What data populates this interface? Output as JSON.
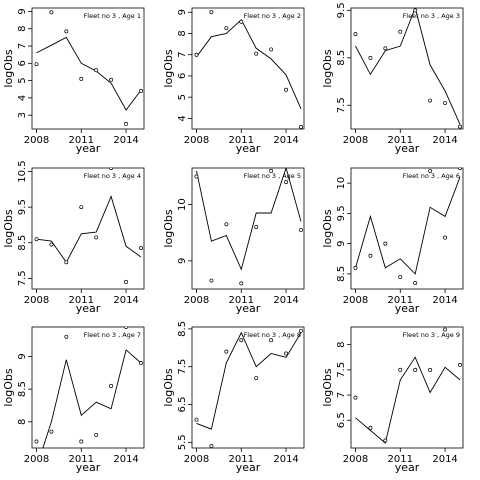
{
  "chart_data": [
    {
      "type": "line",
      "title": "Fleet no 3 , Age 1",
      "xlabel": "year",
      "ylabel": "logObs",
      "xlim": [
        2007.7,
        2015.2
      ],
      "ylim": [
        2.2,
        9.2
      ],
      "xticks": [
        2008,
        2011,
        2014
      ],
      "yticks": [
        3,
        4,
        5,
        6,
        7,
        8,
        9
      ],
      "x": [
        2008,
        2009,
        2010,
        2011,
        2012,
        2013,
        2014,
        2015
      ],
      "fitted": [
        6.6,
        7.05,
        7.5,
        6.0,
        5.55,
        4.85,
        3.3,
        4.45
      ],
      "observed": [
        5.95,
        8.95,
        7.85,
        5.1,
        5.6,
        5.05,
        2.5,
        4.4
      ]
    },
    {
      "type": "line",
      "title": "Fleet no 3 , Age 2",
      "xlabel": "year",
      "ylabel": "logObs",
      "xlim": [
        2007.7,
        2015.2
      ],
      "ylim": [
        3.5,
        9.2
      ],
      "xticks": [
        2008,
        2011,
        2014
      ],
      "yticks": [
        4,
        5,
        6,
        7,
        8,
        9
      ],
      "x": [
        2008,
        2009,
        2010,
        2011,
        2012,
        2013,
        2014,
        2015
      ],
      "fitted": [
        6.9,
        7.85,
        8.0,
        8.65,
        7.3,
        6.8,
        6.05,
        4.45
      ],
      "observed": [
        7.0,
        9.0,
        8.25,
        8.55,
        7.05,
        7.25,
        5.35,
        3.6
      ]
    },
    {
      "type": "line",
      "title": "Fleet no 3 , Age 3",
      "xlabel": "year",
      "ylabel": "logObs",
      "xlim": [
        2007.7,
        2015.2
      ],
      "ylim": [
        7.0,
        9.55
      ],
      "xticks": [
        2008,
        2011,
        2014
      ],
      "yticks": [
        7.5,
        8.5,
        9.5
      ],
      "x": [
        2008,
        2009,
        2010,
        2011,
        2012,
        2013,
        2014,
        2015
      ],
      "fitted": [
        8.75,
        8.15,
        8.65,
        8.75,
        9.55,
        8.35,
        7.8,
        7.1
      ],
      "observed": [
        9.0,
        8.5,
        8.7,
        9.05,
        9.5,
        7.6,
        7.55,
        7.05
      ]
    },
    {
      "type": "line",
      "title": "Fleet no 3 , Age 4",
      "xlabel": "year",
      "ylabel": "logObs",
      "xlim": [
        2007.7,
        2015.2
      ],
      "ylim": [
        7.2,
        10.6
      ],
      "xticks": [
        2008,
        2011,
        2014
      ],
      "yticks": [
        7.5,
        8.5,
        9.5,
        10.5
      ],
      "x": [
        2008,
        2009,
        2010,
        2011,
        2012,
        2013,
        2014,
        2015
      ],
      "fitted": [
        8.6,
        8.55,
        7.95,
        8.75,
        8.8,
        9.8,
        8.4,
        8.1
      ],
      "observed": [
        8.6,
        8.45,
        7.95,
        9.5,
        8.65,
        10.6,
        7.4,
        8.35
      ]
    },
    {
      "type": "line",
      "title": "Fleet no 3 , Age 5",
      "xlabel": "year",
      "ylabel": "logObs",
      "xlim": [
        2007.7,
        2015.2
      ],
      "ylim": [
        8.5,
        10.65
      ],
      "xticks": [
        2008,
        2011,
        2014
      ],
      "yticks": [
        9.0,
        10.0
      ],
      "x": [
        2008,
        2009,
        2010,
        2011,
        2012,
        2013,
        2014,
        2015
      ],
      "fitted": [
        10.6,
        9.35,
        9.45,
        8.85,
        9.85,
        9.85,
        10.65,
        9.7
      ],
      "observed": [
        10.5,
        8.65,
        9.65,
        8.6,
        9.6,
        10.6,
        10.4,
        9.55
      ]
    },
    {
      "type": "line",
      "title": "Fleet no 3 , Age 6",
      "xlabel": "year",
      "ylabel": "logObs",
      "xlim": [
        2007.7,
        2015.2
      ],
      "ylim": [
        8.25,
        10.25
      ],
      "xticks": [
        2008,
        2011,
        2014
      ],
      "yticks": [
        8.5,
        9.0,
        9.5,
        10.0
      ],
      "x": [
        2008,
        2009,
        2010,
        2011,
        2012,
        2013,
        2014,
        2015
      ],
      "fitted": [
        8.6,
        9.45,
        8.6,
        8.75,
        8.5,
        9.6,
        9.45,
        10.1
      ],
      "observed": [
        8.6,
        8.8,
        9.0,
        8.45,
        8.35,
        10.2,
        9.1,
        10.25
      ]
    },
    {
      "type": "line",
      "title": "Fleet no 3 , Age 7",
      "xlabel": "year",
      "ylabel": "logObs",
      "xlim": [
        2007.7,
        2015.2
      ],
      "ylim": [
        7.6,
        9.45
      ],
      "xticks": [
        2008,
        2011,
        2014
      ],
      "yticks": [
        8.0,
        8.5,
        9.0
      ],
      "x": [
        2008,
        2009,
        2010,
        2011,
        2012,
        2013,
        2014,
        2015
      ],
      "fitted": [
        7.3,
        8.0,
        8.95,
        8.1,
        8.3,
        8.2,
        9.1,
        8.9
      ],
      "observed": [
        7.7,
        7.85,
        9.3,
        7.7,
        7.8,
        8.55,
        9.45,
        8.9
      ]
    },
    {
      "type": "line",
      "title": "Fleet no 3 , Age 8",
      "xlabel": "year",
      "ylabel": "logObs",
      "xlim": [
        2007.7,
        2015.2
      ],
      "ylim": [
        5.35,
        8.55
      ],
      "xticks": [
        2008,
        2011,
        2014
      ],
      "yticks": [
        5.5,
        6.5,
        7.5,
        8.5
      ],
      "x": [
        2008,
        2009,
        2010,
        2011,
        2012,
        2013,
        2014,
        2015
      ],
      "fitted": [
        6.0,
        5.85,
        7.6,
        8.4,
        7.5,
        7.85,
        7.75,
        8.4
      ],
      "observed": [
        6.1,
        5.4,
        7.9,
        8.2,
        7.2,
        8.2,
        7.85,
        8.45
      ]
    },
    {
      "type": "line",
      "title": "Fleet no 3 , Age 9",
      "xlabel": "year",
      "ylabel": "logObs",
      "xlim": [
        2007.7,
        2015.2
      ],
      "ylim": [
        5.95,
        8.35
      ],
      "xticks": [
        2008,
        2011,
        2014
      ],
      "yticks": [
        6.5,
        7.0,
        7.5,
        8.0
      ],
      "x": [
        2008,
        2009,
        2010,
        2011,
        2012,
        2013,
        2014,
        2015
      ],
      "fitted": [
        6.55,
        6.3,
        6.05,
        7.3,
        7.75,
        7.05,
        7.55,
        7.3
      ],
      "observed": [
        6.95,
        6.35,
        6.1,
        7.5,
        7.5,
        7.5,
        8.3,
        7.6
      ]
    }
  ]
}
